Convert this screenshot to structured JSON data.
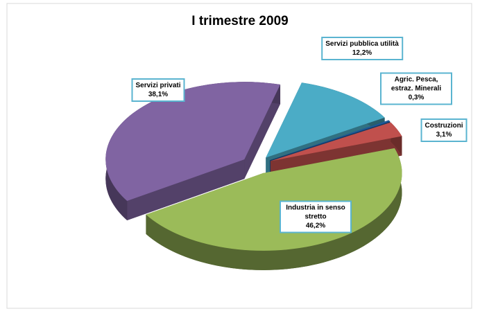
{
  "chart_data": {
    "type": "pie3d",
    "title": "I trimestre 2009",
    "categories": [
      "Servizi pubblica utilità",
      "Agric. Pesca, estraz. Minerali",
      "Costruzioni",
      "Industria in senso stretto",
      "Servizi privati"
    ],
    "values": [
      12.2,
      0.3,
      3.1,
      46.2,
      38.1
    ],
    "value_labels": [
      "12,2%",
      "0,3%",
      "3,1%",
      "46,2%",
      "38,1%"
    ],
    "colors": [
      "#4bacc6",
      "#1f5a9a",
      "#c0504d",
      "#9bbb59",
      "#8064a2"
    ]
  }
}
